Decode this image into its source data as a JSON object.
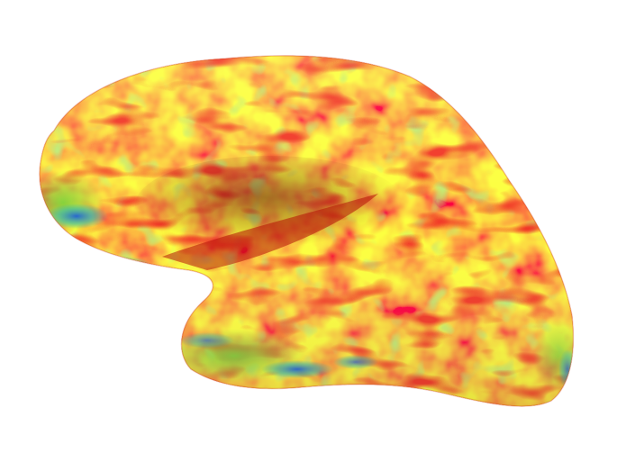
{
  "figure": {
    "subject_icon": "inflated-cortical-surface-icon",
    "view": "lateral",
    "colors": {
      "background": "#ffffff",
      "red": "#ee1c0c",
      "deep_red": "#c80e08",
      "orange": "#f46a12",
      "yellow": "#f6e31a",
      "green": "#86d42e",
      "cyan": "#2fb8b2",
      "blue": "#1f5fd6"
    }
  }
}
